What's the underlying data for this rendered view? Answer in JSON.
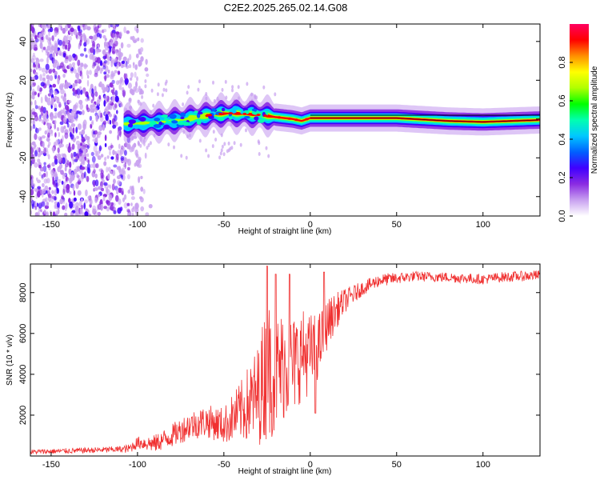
{
  "title": "C2E2.2025.265.02.14.G08",
  "chart_data": [
    {
      "type": "heatmap",
      "name": "spectrogram",
      "xlabel": "Height of straight line (km)",
      "ylabel": "Frequency (Hz)",
      "xlim": [
        -162,
        133
      ],
      "ylim": [
        -50,
        49
      ],
      "xticks": [
        -150,
        -100,
        -50,
        0,
        50,
        100
      ],
      "xtick_labels": [
        "-150",
        "-100",
        "-50",
        "0",
        "50",
        "100"
      ],
      "yticks": [
        -40,
        -20,
        0,
        20,
        40
      ],
      "ytick_labels": [
        "-40",
        "-20",
        "0",
        "20",
        "40"
      ],
      "colorbar": {
        "label": "Normalized spectral amplitude",
        "range": [
          0,
          1
        ],
        "ticks": [
          0.0,
          0.2,
          0.4,
          0.6,
          0.8
        ],
        "tick_labels": [
          "0.0",
          "0.2",
          "0.4",
          "0.6",
          "0.8"
        ],
        "colormap": [
          "#ffffff",
          "#c8a0f0",
          "#8a2be2",
          "#4000ff",
          "#0060ff",
          "#00c8ff",
          "#00ffb0",
          "#00ff00",
          "#b0ff00",
          "#ffff00",
          "#ff9000",
          "#ff0000",
          "#ff0060"
        ]
      },
      "ridge_points_km_hz": [
        [
          -105,
          -2.5
        ],
        [
          -95,
          -2.0
        ],
        [
          -85,
          -1.5
        ],
        [
          -75,
          -0.5
        ],
        [
          -65,
          1.0
        ],
        [
          -55,
          2.5
        ],
        [
          -45,
          3.0
        ],
        [
          -35,
          2.5
        ],
        [
          -28,
          2.0
        ],
        [
          -20,
          1.0
        ],
        [
          -10,
          0.0
        ],
        [
          -5,
          -1.0
        ],
        [
          0,
          0.5
        ],
        [
          20,
          0.5
        ],
        [
          50,
          0.5
        ],
        [
          80,
          -1.0
        ],
        [
          100,
          -1.5
        ],
        [
          133,
          -0.5
        ]
      ]
    },
    {
      "type": "line",
      "name": "snr",
      "xlabel": "Height of straight line (km)",
      "ylabel": "SNR (10 * v/v)",
      "xlim": [
        -162,
        133
      ],
      "ylim": [
        0,
        9400
      ],
      "xticks": [
        -150,
        -100,
        -50,
        0,
        50,
        100
      ],
      "xtick_labels": [
        "-150",
        "-100",
        "-50",
        "0",
        "50",
        "100"
      ],
      "yticks": [
        2000,
        4000,
        6000,
        8000
      ],
      "ytick_labels": [
        "2000",
        "4000",
        "6000",
        "8000"
      ],
      "color": "#f03030",
      "envelope_km_snr": [
        [
          -162,
          200
        ],
        [
          -140,
          250
        ],
        [
          -120,
          300
        ],
        [
          -105,
          350
        ],
        [
          -100,
          650
        ],
        [
          -90,
          600
        ],
        [
          -80,
          1000
        ],
        [
          -70,
          1500
        ],
        [
          -60,
          1700
        ],
        [
          -50,
          1500
        ],
        [
          -40,
          2200
        ],
        [
          -30,
          3000
        ],
        [
          -25,
          4300
        ],
        [
          -20,
          4000
        ],
        [
          -15,
          4500
        ],
        [
          -10,
          4400
        ],
        [
          -5,
          5000
        ],
        [
          0,
          5000
        ],
        [
          5,
          5400
        ],
        [
          10,
          6500
        ],
        [
          15,
          7100
        ],
        [
          20,
          7600
        ],
        [
          30,
          8200
        ],
        [
          40,
          8600
        ],
        [
          50,
          8700
        ],
        [
          60,
          8800
        ],
        [
          80,
          8750
        ],
        [
          100,
          8650
        ],
        [
          110,
          8750
        ],
        [
          133,
          8850
        ]
      ],
      "noise_amplitude_km_snr": [
        [
          -162,
          120
        ],
        [
          -110,
          150
        ],
        [
          -100,
          300
        ],
        [
          -70,
          700
        ],
        [
          -50,
          900
        ],
        [
          -40,
          1500
        ],
        [
          -30,
          2500
        ],
        [
          -25,
          3500
        ],
        [
          -20,
          3000
        ],
        [
          -10,
          2500
        ],
        [
          0,
          2000
        ],
        [
          10,
          1200
        ],
        [
          20,
          600
        ],
        [
          30,
          350
        ],
        [
          60,
          250
        ],
        [
          133,
          250
        ]
      ],
      "spikes_km_snr": [
        [
          -25,
          9300
        ],
        [
          -20,
          8900
        ],
        [
          -12,
          8900
        ],
        [
          3,
          2100
        ],
        [
          8,
          9000
        ]
      ]
    }
  ]
}
